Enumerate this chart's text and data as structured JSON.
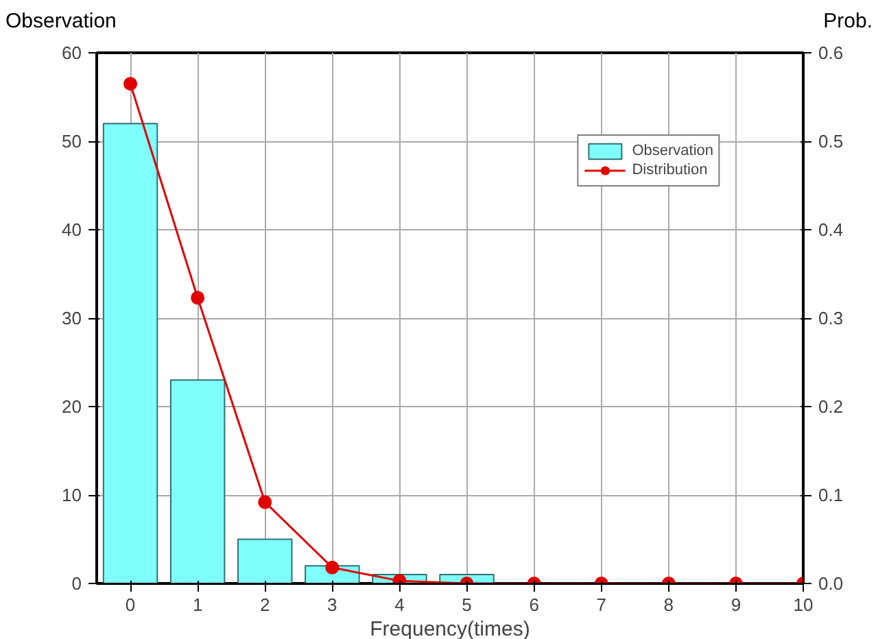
{
  "chart_data": {
    "type": "bar",
    "xlabel": "Frequency(times)",
    "ylabel": "Observation",
    "y2label": "Prob.",
    "x": [
      0,
      1,
      2,
      3,
      4,
      5,
      6,
      7,
      8,
      9,
      10
    ],
    "series": [
      {
        "name": "Observation",
        "color": "#80ffff",
        "values": [
          52,
          23,
          5,
          2,
          1,
          1,
          0,
          0,
          0,
          0,
          0
        ]
      },
      {
        "name": "Distribution",
        "type": "line",
        "axis": "y2",
        "color": "#e00000",
        "marker": "circle",
        "values": [
          0.565,
          0.323,
          0.092,
          0.018,
          0.003,
          0,
          0,
          0,
          0,
          0,
          0
        ]
      }
    ],
    "xlim": [
      -0.5,
      10
    ],
    "xticks": [
      0,
      1,
      2,
      3,
      4,
      5,
      6,
      7,
      8,
      9,
      10
    ],
    "ylim": [
      0,
      60
    ],
    "yticks": [
      0,
      10,
      20,
      30,
      40,
      50,
      60
    ],
    "y2lim": [
      0,
      0.6
    ],
    "y2ticks": [
      {
        "value": 0,
        "label": "0.0"
      },
      0.1,
      0.2,
      0.3,
      0.4,
      0.5,
      0.6
    ],
    "grid": true,
    "legend": "top right"
  }
}
